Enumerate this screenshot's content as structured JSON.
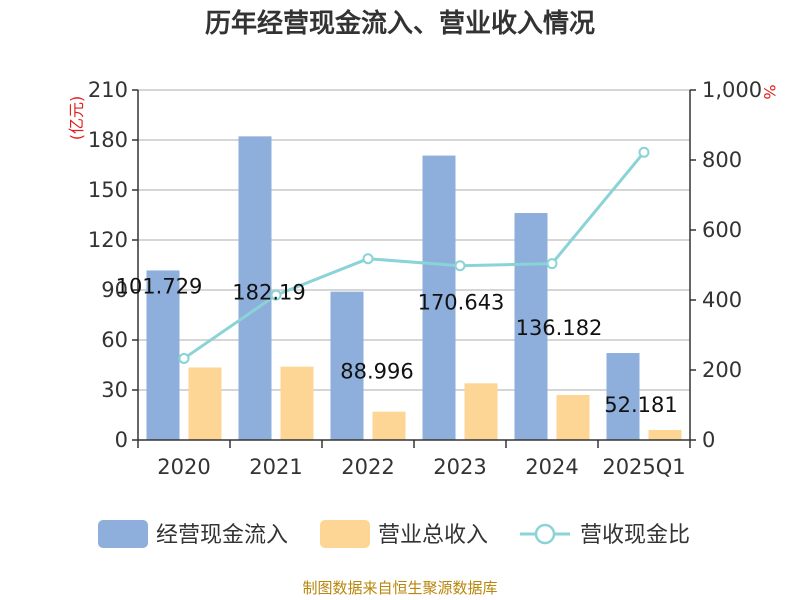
{
  "chart_data": {
    "type": "bar",
    "title": "历年经营现金流入、营业收入情况",
    "categories": [
      "2020",
      "2021",
      "2022",
      "2023",
      "2024",
      "2025Q1"
    ],
    "series": [
      {
        "name": "经营现金流入",
        "kind": "bar",
        "axis": "left",
        "color": "#8eaedb",
        "values": [
          101.729,
          182.19,
          88.996,
          170.643,
          136.182,
          52.181
        ],
        "labels": [
          "101.729",
          "182.19",
          "88.996",
          "170.643",
          "136.182",
          "52.181"
        ]
      },
      {
        "name": "营业总收入",
        "kind": "bar",
        "axis": "left",
        "color": "#fdd594",
        "values": [
          43.5,
          44,
          17,
          34,
          27,
          6
        ]
      },
      {
        "name": "营收现金比",
        "kind": "line",
        "axis": "right",
        "color": "#8ad3d6",
        "values": [
          233,
          414,
          518,
          498,
          504,
          822
        ]
      }
    ],
    "left_axis": {
      "unit": "(亿元)",
      "min": 0,
      "max": 210,
      "ticks": [
        0,
        30,
        60,
        90,
        120,
        150,
        180,
        210
      ],
      "tick_labels": [
        "0",
        "30",
        "60",
        "90",
        "120",
        "150",
        "180",
        "210"
      ]
    },
    "right_axis": {
      "unit": "%",
      "min": 0,
      "max": 1000,
      "ticks": [
        0,
        200,
        400,
        600,
        800,
        1000
      ],
      "tick_labels": [
        "0",
        "200",
        "400",
        "600",
        "800",
        "1,000"
      ]
    },
    "grid": true,
    "legend_position": "bottom",
    "source": "制图数据来自恒生聚源数据库"
  }
}
